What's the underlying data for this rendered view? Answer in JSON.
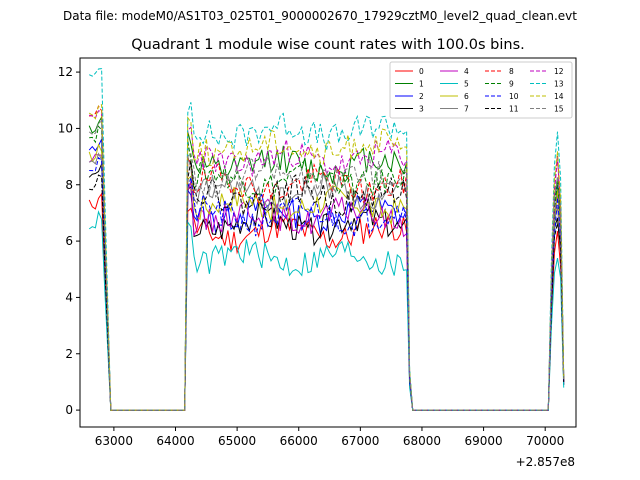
{
  "chart_data": {
    "type": "line",
    "suptitle": "Data file: modeM0/AS1T03_025T01_9000002670_17929cztM0_level2_quad_clean.evt",
    "title": "Quadrant 1 module wise count rates with 100.0s bins.",
    "xlabel": "",
    "ylabel": "",
    "x_offset_label": "+2.857e8",
    "xlim": [
      62450,
      70500
    ],
    "ylim": [
      -0.6,
      12.5
    ],
    "xticks": [
      63000,
      64000,
      65000,
      66000,
      67000,
      68000,
      69000,
      70000
    ],
    "xtick_labels": [
      "63000",
      "64000",
      "65000",
      "66000",
      "67000",
      "68000",
      "69000",
      "70000"
    ],
    "yticks": [
      0,
      2,
      4,
      6,
      8,
      10,
      12
    ],
    "ytick_labels": [
      "0",
      "2",
      "4",
      "6",
      "8",
      "10",
      "12"
    ],
    "legend_position": "upper-right",
    "legend_columns": 4,
    "segments": [
      {
        "start": 62600,
        "end": 62950
      },
      {
        "start": 64150,
        "end": 67850
      },
      {
        "start": 70050,
        "end": 70300
      }
    ],
    "gap_level": 0,
    "series": [
      {
        "name": "0",
        "color": "#ff0000",
        "dash": false,
        "level": 6.3,
        "start": 7.3,
        "end": 1.0
      },
      {
        "name": "1",
        "color": "#008000",
        "dash": false,
        "level": 8.7,
        "start": 10.0,
        "end": 1.1
      },
      {
        "name": "2",
        "color": "#0000ff",
        "dash": false,
        "level": 7.0,
        "start": 9.2,
        "end": 0.9
      },
      {
        "name": "3",
        "color": "#000000",
        "dash": false,
        "level": 6.6,
        "start": 8.3,
        "end": 0.9
      },
      {
        "name": "4",
        "color": "#bf00bf",
        "dash": false,
        "level": 6.9,
        "start": 8.9,
        "end": 1.0
      },
      {
        "name": "5",
        "color": "#00bfbf",
        "dash": false,
        "level": 5.4,
        "start": 6.6,
        "end": 0.8
      },
      {
        "name": "6",
        "color": "#bfbf00",
        "dash": false,
        "level": 7.3,
        "start": 9.0,
        "end": 1.0
      },
      {
        "name": "7",
        "color": "#808080",
        "dash": false,
        "level": 7.7,
        "start": 8.7,
        "end": 1.0
      },
      {
        "name": "8",
        "color": "#ff0000",
        "dash": true,
        "level": 8.0,
        "start": 10.4,
        "end": 1.1
      },
      {
        "name": "9",
        "color": "#008000",
        "dash": true,
        "level": 8.2,
        "start": 9.7,
        "end": 1.1
      },
      {
        "name": "10",
        "color": "#0000ff",
        "dash": true,
        "level": 6.9,
        "start": 8.6,
        "end": 1.0
      },
      {
        "name": "11",
        "color": "#000000",
        "dash": true,
        "level": 7.6,
        "start": 8.0,
        "end": 1.0
      },
      {
        "name": "12",
        "color": "#bf00bf",
        "dash": true,
        "level": 8.9,
        "start": 10.3,
        "end": 1.2
      },
      {
        "name": "13",
        "color": "#00bfbf",
        "dash": true,
        "level": 9.9,
        "start": 11.8,
        "end": 1.2
      },
      {
        "name": "14",
        "color": "#bfbf00",
        "dash": true,
        "level": 9.3,
        "start": 10.5,
        "end": 1.2
      },
      {
        "name": "15",
        "color": "#808080",
        "dash": true,
        "level": 8.3,
        "start": 9.9,
        "end": 1.1
      }
    ]
  }
}
